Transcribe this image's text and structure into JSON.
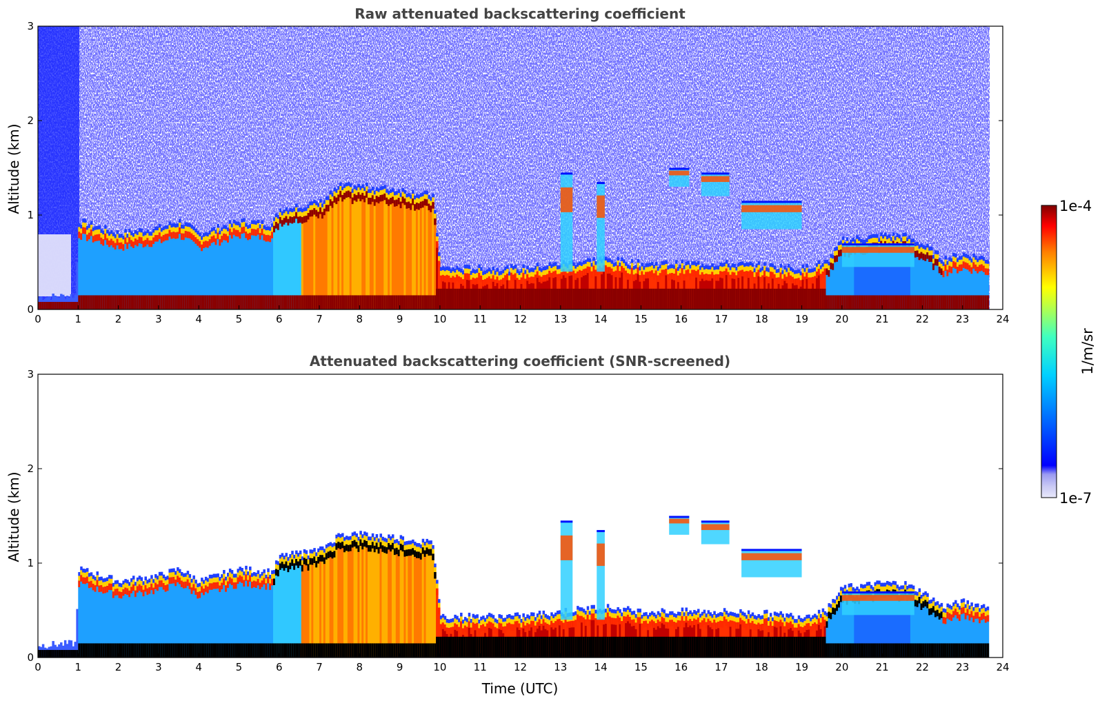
{
  "chart_data": [
    {
      "type": "heatmap",
      "title": "Raw attenuated backscattering coefficient",
      "xlabel": "",
      "ylabel": "Altitude (km)",
      "xlim": [
        0,
        24
      ],
      "ylim": [
        0,
        3
      ],
      "xticks": [
        "0",
        "1",
        "2",
        "3",
        "4",
        "5",
        "6",
        "7",
        "8",
        "9",
        "10",
        "11",
        "12",
        "13",
        "14",
        "15",
        "16",
        "17",
        "18",
        "19",
        "20",
        "21",
        "22",
        "23",
        "24"
      ],
      "yticks": [
        "0",
        "1",
        "2",
        "3"
      ],
      "variant": "raw",
      "features": {
        "boundary_layer_top_km": [
          [
            0.0,
            0.13
          ],
          [
            0.9,
            0.15
          ],
          [
            1.0,
            0.85
          ],
          [
            2.0,
            0.72
          ],
          [
            3.0,
            0.78
          ],
          [
            3.5,
            0.85
          ],
          [
            4.0,
            0.72
          ],
          [
            5.0,
            0.85
          ],
          [
            5.8,
            0.82
          ],
          [
            6.0,
            0.98
          ],
          [
            7.0,
            1.05
          ],
          [
            7.5,
            1.22
          ],
          [
            8.0,
            1.22
          ],
          [
            9.0,
            1.18
          ],
          [
            9.8,
            1.12
          ],
          [
            10.0,
            0.35
          ],
          [
            11.0,
            0.35
          ],
          [
            12.0,
            0.35
          ],
          [
            13.0,
            0.4
          ],
          [
            14.0,
            0.45
          ],
          [
            15.0,
            0.4
          ],
          [
            16.0,
            0.4
          ],
          [
            17.0,
            0.4
          ],
          [
            18.0,
            0.38
          ],
          [
            19.0,
            0.35
          ],
          [
            19.6,
            0.42
          ],
          [
            20.0,
            0.65
          ],
          [
            21.0,
            0.7
          ],
          [
            21.5,
            0.7
          ],
          [
            22.0,
            0.6
          ],
          [
            22.5,
            0.45
          ],
          [
            23.0,
            0.5
          ],
          [
            23.65,
            0.45
          ]
        ],
        "clouds": [
          {
            "x": [
              15.7,
              16.2
            ],
            "y": [
              1.3,
              1.5
            ]
          },
          {
            "x": [
              16.5,
              17.2
            ],
            "y": [
              1.2,
              1.45
            ]
          },
          {
            "x": [
              17.5,
              19.0
            ],
            "y": [
              0.85,
              1.15
            ]
          },
          {
            "x": [
              13.0,
              13.3
            ],
            "y": [
              0.4,
              1.45
            ]
          },
          {
            "x": [
              13.9,
              14.1
            ],
            "y": [
              0.4,
              1.35
            ]
          },
          {
            "x": [
              20.0,
              21.8
            ],
            "y": [
              0.45,
              0.7
            ]
          }
        ]
      }
    },
    {
      "type": "heatmap",
      "title": "Attenuated backscattering coefficient (SNR-screened)",
      "xlabel": "Time (UTC)",
      "ylabel": "Altitude (km)",
      "xlim": [
        0,
        24
      ],
      "ylim": [
        0,
        3
      ],
      "xticks": [
        "0",
        "1",
        "2",
        "3",
        "4",
        "5",
        "6",
        "7",
        "8",
        "9",
        "10",
        "11",
        "12",
        "13",
        "14",
        "15",
        "16",
        "17",
        "18",
        "19",
        "20",
        "21",
        "22",
        "23",
        "24"
      ],
      "yticks": [
        "0",
        "1",
        "2",
        "3"
      ],
      "variant": "screened"
    }
  ],
  "colorbar": {
    "label": "1/m/sr",
    "max_label": "1e-4",
    "min_label": "1e-7",
    "scale": "log",
    "colormap": "jet",
    "colors": [
      "#e8e8fa",
      "#c8c8f4",
      "#a0a0f0",
      "#0000ff",
      "#0080ff",
      "#00c8ff",
      "#40ffc0",
      "#c0ff40",
      "#ffff00",
      "#ff8000",
      "#ff0000",
      "#800000"
    ]
  }
}
